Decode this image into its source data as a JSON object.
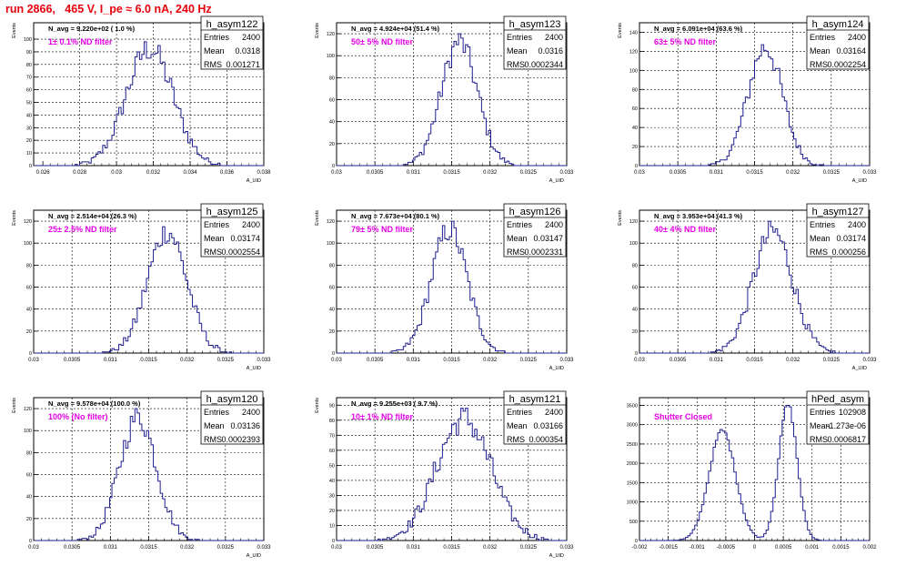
{
  "title": "run 2866,   465 V, I_pe ≈ 6.0 nA, 240 Hz",
  "colors": {
    "title": "#e8000b",
    "hist": "#1f1f8f",
    "annotation": "#e600e6",
    "text": "#000000"
  },
  "chart_data": [
    {
      "type": "histogram",
      "name": "h_asym122",
      "stats": {
        "Entries": "2400",
        "Mean": "0.0318",
        "RMS": "0.001271"
      },
      "navg": "N_avg = 9.220e+02 ( 1.0 %)",
      "annotation": "1± 0.1% ND filter",
      "xlabel": "A_UID",
      "ylabel": "Events",
      "xlim": [
        0.0255,
        0.038
      ],
      "ylim": [
        0,
        113
      ],
      "xticks": [
        "0.026",
        "0.028",
        "0.03",
        "0.032",
        "0.034",
        "0.036",
        "0.038"
      ],
      "xtick_values": [
        0.026,
        0.028,
        0.03,
        0.032,
        0.034,
        0.036,
        0.038
      ],
      "yticks": [
        0,
        10,
        20,
        30,
        40,
        50,
        60,
        70,
        80,
        90,
        100
      ],
      "mean": 0.0318,
      "sigma": 0.00127,
      "peak": 103,
      "shape": "gauss"
    },
    {
      "type": "histogram",
      "name": "h_asym123",
      "stats": {
        "Entries": "2400",
        "Mean": "0.0316",
        "RMS": "0.0002344"
      },
      "navg": "N_avg = 4.924e+04 (51.4 %)",
      "annotation": "50± 5% ND filter",
      "xlabel": "A_UID",
      "ylabel": "Events",
      "xlim": [
        0.03,
        0.033
      ],
      "ylim": [
        0,
        130
      ],
      "xticks": [
        "0.03",
        "0.0305",
        "0.031",
        "0.0315",
        "0.032",
        "0.0325",
        "0.033"
      ],
      "xtick_values": [
        0.03,
        0.0305,
        0.031,
        0.0315,
        0.032,
        0.0325,
        0.033
      ],
      "yticks": [
        0,
        20,
        40,
        60,
        80,
        100,
        120
      ],
      "mean": 0.0316,
      "sigma": 0.000234,
      "peak": 125,
      "shape": "gauss"
    },
    {
      "type": "histogram",
      "name": "h_asym124",
      "stats": {
        "Entries": "2400",
        "Mean": "0.03164",
        "RMS": "0.0002254"
      },
      "navg": "N_avg = 6.091e+04 (63.6 %)",
      "annotation": "63± 5% ND filter",
      "xlabel": "A_UID",
      "ylabel": "Events",
      "xlim": [
        0.03,
        0.033
      ],
      "ylim": [
        0,
        150
      ],
      "xticks": [
        "0.03",
        "0.0305",
        "0.031",
        "0.0315",
        "0.032",
        "0.0325",
        "0.033"
      ],
      "xtick_values": [
        0.03,
        0.0305,
        0.031,
        0.0315,
        0.032,
        0.0325,
        0.033
      ],
      "yticks": [
        0,
        20,
        40,
        60,
        80,
        100,
        120,
        140
      ],
      "mean": 0.03164,
      "sigma": 0.000225,
      "peak": 138,
      "shape": "gauss"
    },
    {
      "type": "histogram",
      "name": "h_asym125",
      "stats": {
        "Entries": "2400",
        "Mean": "0.03174",
        "RMS": "0.0002554"
      },
      "navg": "N_avg = 2.514e+04 (26.3 %)",
      "annotation": "25± 2.5% ND filter",
      "xlabel": "A_UID",
      "ylabel": "Events",
      "xlim": [
        0.03,
        0.033
      ],
      "ylim": [
        0,
        130
      ],
      "xticks": [
        "0.03",
        "0.0305",
        "0.031",
        "0.0315",
        "0.032",
        "0.0325",
        "0.033"
      ],
      "xtick_values": [
        0.03,
        0.0305,
        0.031,
        0.0315,
        0.032,
        0.0325,
        0.033
      ],
      "yticks": [
        0,
        20,
        40,
        60,
        80,
        100,
        120
      ],
      "mean": 0.03174,
      "sigma": 0.000255,
      "peak": 123,
      "shape": "gauss"
    },
    {
      "type": "histogram",
      "name": "h_asym126",
      "stats": {
        "Entries": "2400",
        "Mean": "0.03147",
        "RMS": "0.0002331"
      },
      "navg": "N_avg = 7.673e+04 (80.1 %)",
      "annotation": "79± 5% ND filter",
      "xlabel": "A_UID",
      "ylabel": "Events",
      "xlim": [
        0.03,
        0.033
      ],
      "ylim": [
        0,
        130
      ],
      "xticks": [
        "0.03",
        "0.0305",
        "0.031",
        "0.0315",
        "0.032",
        "0.0325",
        "0.033"
      ],
      "xtick_values": [
        0.03,
        0.0305,
        0.031,
        0.0315,
        0.032,
        0.0325,
        0.033
      ],
      "yticks": [
        0,
        20,
        40,
        60,
        80,
        100,
        120
      ],
      "mean": 0.03147,
      "sigma": 0.000233,
      "peak": 125,
      "shape": "gauss"
    },
    {
      "type": "histogram",
      "name": "h_asym127",
      "stats": {
        "Entries": "2400",
        "Mean": "0.03174",
        "RMS": "0.000256"
      },
      "navg": "N_avg = 3.953e+04 (41.3 %)",
      "annotation": "40± 4% ND filter",
      "xlabel": "A_UID",
      "ylabel": "Events",
      "xlim": [
        0.03,
        0.033
      ],
      "ylim": [
        0,
        130
      ],
      "xticks": [
        "0.03",
        "0.0305",
        "0.031",
        "0.0315",
        "0.032",
        "0.0325",
        "0.033"
      ],
      "xtick_values": [
        0.03,
        0.0305,
        0.031,
        0.0315,
        0.032,
        0.0325,
        0.033
      ],
      "yticks": [
        0,
        20,
        40,
        60,
        80,
        100,
        120
      ],
      "mean": 0.03174,
      "sigma": 0.000256,
      "peak": 123,
      "shape": "gauss"
    },
    {
      "type": "histogram",
      "name": "h_asym120",
      "stats": {
        "Entries": "2400",
        "Mean": "0.03136",
        "RMS": "0.0002393"
      },
      "navg": "N_avg = 9.578e+04 (100.0 %)",
      "annotation": "100% (No filter)",
      "xlabel": "A_UID",
      "ylabel": "Events",
      "xlim": [
        0.03,
        0.033
      ],
      "ylim": [
        0,
        130
      ],
      "xticks": [
        "0.03",
        "0.0305",
        "0.031",
        "0.0315",
        "0.032",
        "0.0325",
        "0.033"
      ],
      "xtick_values": [
        0.03,
        0.0305,
        0.031,
        0.0315,
        0.032,
        0.0325,
        0.033
      ],
      "yticks": [
        0,
        20,
        40,
        60,
        80,
        100,
        120
      ],
      "mean": 0.03136,
      "sigma": 0.000239,
      "peak": 125,
      "shape": "gauss"
    },
    {
      "type": "histogram",
      "name": "h_asym121",
      "stats": {
        "Entries": "2400",
        "Mean": "0.03166",
        "RMS": "0.000354"
      },
      "navg": "N_avg = 9.255e+03 ( 9.7 %)",
      "annotation": "10± 1% ND filter",
      "xlabel": "A_UID",
      "ylabel": "Events",
      "xlim": [
        0.03,
        0.033
      ],
      "ylim": [
        0,
        95
      ],
      "xticks": [
        "0.03",
        "0.0305",
        "0.031",
        "0.0315",
        "0.032",
        "0.0325",
        "0.033"
      ],
      "xtick_values": [
        0.03,
        0.0305,
        0.031,
        0.0315,
        0.032,
        0.0325,
        0.033
      ],
      "yticks": [
        0,
        10,
        20,
        30,
        40,
        50,
        60,
        70,
        80,
        90
      ],
      "mean": 0.03166,
      "sigma": 0.000354,
      "peak": 90,
      "shape": "gauss"
    },
    {
      "type": "histogram",
      "name": "hPed_asym",
      "stats": {
        "Entries": "102908",
        "Mean": "-1.273e-06",
        "RMS": "0.0006817"
      },
      "navg": "",
      "annotation": "Shutter Closed",
      "xlabel": "",
      "ylabel": "",
      "xlim": [
        -0.002,
        0.002
      ],
      "ylim": [
        0,
        3700
      ],
      "xticks": [
        "-0.002",
        "-0.0015",
        "-0.001",
        "-0.0005",
        "0",
        "0.0005",
        "0.001",
        "0.0015",
        "0.002"
      ],
      "xtick_values": [
        -0.002,
        -0.0015,
        -0.001,
        -0.0005,
        0,
        0.0005,
        0.001,
        0.0015,
        0.002
      ],
      "yticks": [
        0,
        500,
        1000,
        1500,
        2000,
        2500,
        3000,
        3500
      ],
      "mean": -1.3e-06,
      "sigma": 0.000682,
      "peak": 3500,
      "shape": "double",
      "peaks": [
        {
          "mu": -0.00056,
          "sigma": 0.00023,
          "amp": 2850
        },
        {
          "mu": 0.00058,
          "sigma": 0.00016,
          "amp": 3520
        }
      ]
    }
  ]
}
